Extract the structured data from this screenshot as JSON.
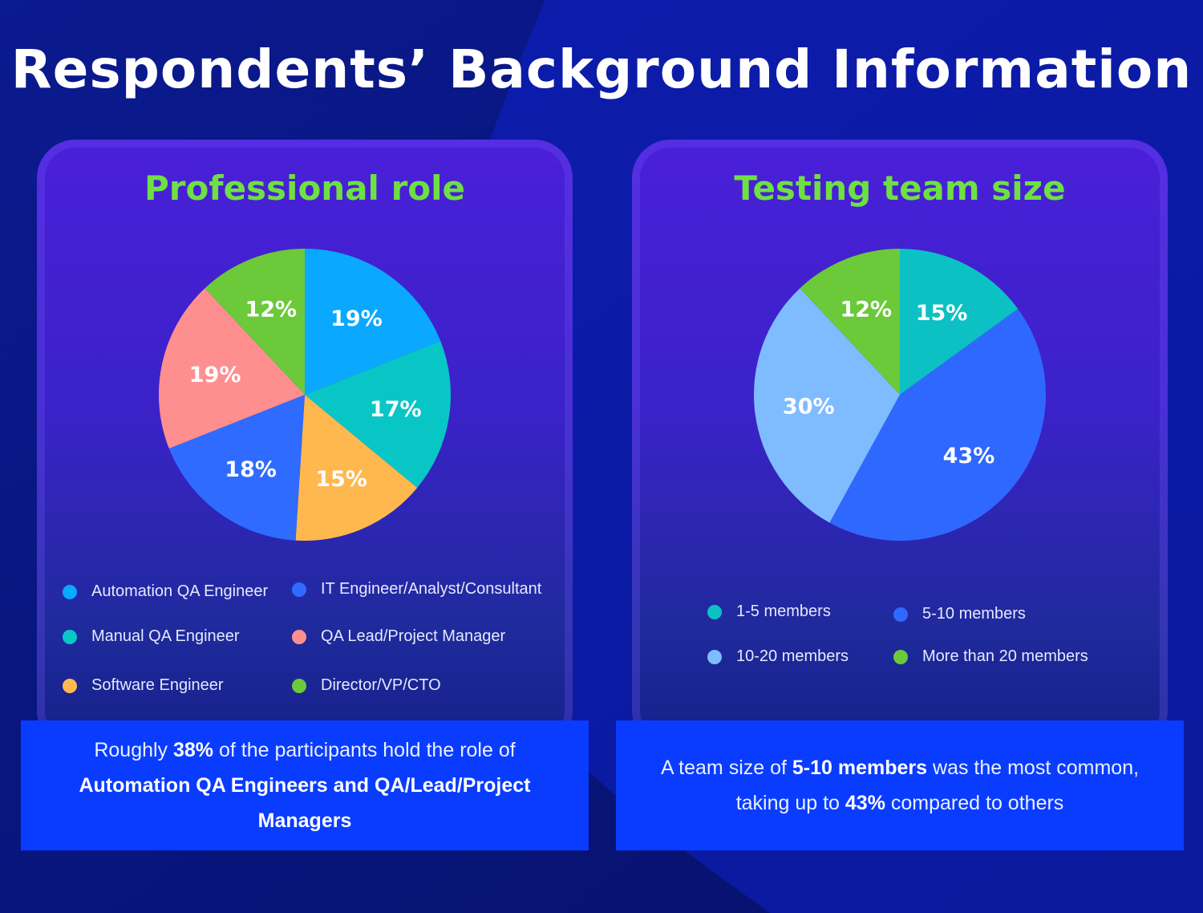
{
  "title": "Respondents’ Background Information",
  "colors": {
    "title_green": "#6ee043",
    "callout_blue": "#0a3cff"
  },
  "chart_data": [
    {
      "type": "pie",
      "title": "Professional role",
      "unit": "%",
      "slices": [
        {
          "label": "Automation QA Engineer",
          "value": 19,
          "color": "#0aa8ff"
        },
        {
          "label": "Manual QA Engineer",
          "value": 17,
          "color": "#09c6c6"
        },
        {
          "label": "Software Engineer",
          "value": 15,
          "color": "#ffb84d"
        },
        {
          "label": "IT Engineer/Analyst/Consultant",
          "value": 18,
          "color": "#2f6bff"
        },
        {
          "label": "QA Lead/Project Manager",
          "value": 19,
          "color": "#ff8f8f"
        },
        {
          "label": "Director/VP/CTO",
          "value": 12,
          "color": "#6cc93a"
        }
      ],
      "legend_order": [
        "Automation QA Engineer",
        "IT Engineer/Analyst/Consultant",
        "Manual QA Engineer",
        "QA Lead/Project Manager",
        "Software Engineer",
        "Director/VP/CTO"
      ]
    },
    {
      "type": "pie",
      "title": "Testing team size",
      "unit": "%",
      "slices": [
        {
          "label": "1-5 members",
          "value": 15,
          "color": "#0bc1c4"
        },
        {
          "label": "5-10 members",
          "value": 43,
          "color": "#2f68ff"
        },
        {
          "label": "10-20 members",
          "value": 30,
          "color": "#7fbcff"
        },
        {
          "label": "More than 20 members",
          "value": 12,
          "color": "#6cc93a"
        }
      ],
      "legend_order": [
        "1-5 members",
        "5-10 members",
        "10-20 members",
        "More than 20 members"
      ]
    }
  ],
  "callouts": {
    "left": {
      "p1": "Roughly ",
      "b1": "38%",
      "p2": " of the participants hold the role of ",
      "b2": "Automation QA Engineers and QA/Lead/Project Managers"
    },
    "right": {
      "p1": "A team size of ",
      "b1": "5-10 members",
      "p2": " was the most common, taking up to ",
      "b2": "43%",
      "p3": " compared to others"
    }
  }
}
